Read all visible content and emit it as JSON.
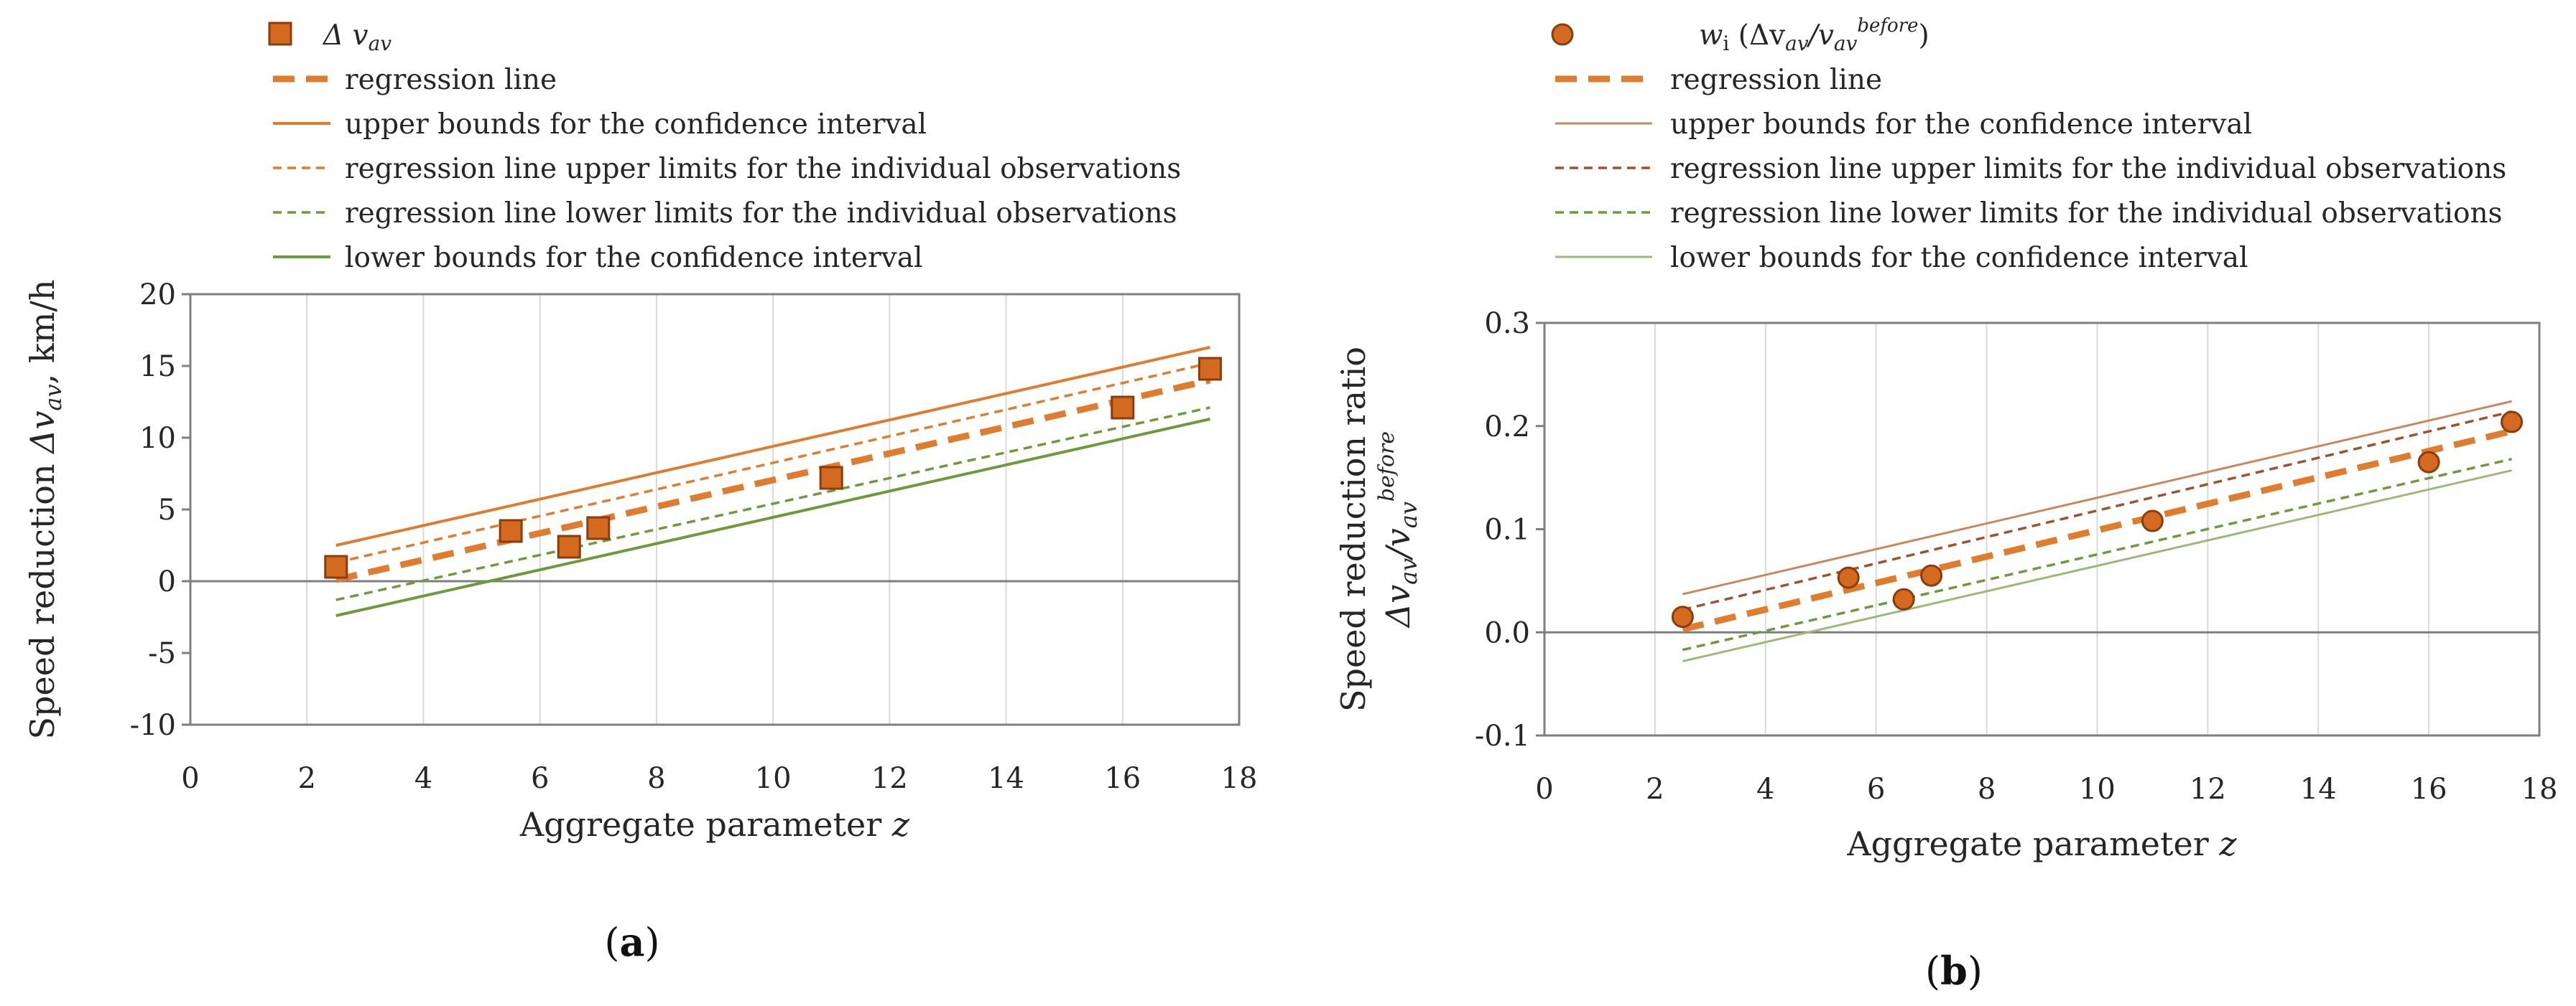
{
  "chart_data": [
    {
      "type": "scatter",
      "panel_label": "(a)",
      "title": "",
      "xlabel": "Aggregate parameter",
      "xlabel_var": "z",
      "ylabel_main": "Speed reduction",
      "ylabel_sym": "Δv",
      "ylabel_sub": "av",
      "ylabel_unit": ", km/h",
      "xlim": [
        0,
        18
      ],
      "ylim": [
        -10,
        20
      ],
      "xticks": [
        0,
        2,
        4,
        6,
        8,
        10,
        12,
        14,
        16,
        18
      ],
      "yticks": [
        -10,
        -5,
        0,
        5,
        10,
        15,
        20
      ],
      "ytick_labels": [
        "-10",
        "-5",
        "0",
        "5",
        "10",
        "15",
        "20"
      ],
      "legend": [
        {
          "key": "obs",
          "label_main": "Δ v",
          "label_sub": "av",
          "label_after": ""
        },
        {
          "key": "reg",
          "label_main": "regression line"
        },
        {
          "key": "ub",
          "label_main": "upper bounds for the confidence interval"
        },
        {
          "key": "pu",
          "label_main": "regression line upper limits for the individual observations"
        },
        {
          "key": "pl",
          "label_main": "regression line lower limits for the individual observations"
        },
        {
          "key": "lb",
          "label_main": "lower bounds for the confidence interval"
        }
      ],
      "series": [
        {
          "key": "obs",
          "kind": "points",
          "marker": "square",
          "color": "#D46A1F",
          "x": [
            2.5,
            5.5,
            6.5,
            7.0,
            11.0,
            16.0,
            17.5
          ],
          "y": [
            1.0,
            3.5,
            2.4,
            3.7,
            7.2,
            12.1,
            14.8
          ]
        },
        {
          "key": "reg",
          "kind": "line",
          "style": "bold-dash",
          "color": "#E07C2E",
          "x": [
            2.5,
            17.5
          ],
          "y": [
            0.1,
            14.0
          ]
        },
        {
          "key": "ub",
          "kind": "line",
          "style": "solid",
          "color": "#E07C2E",
          "x": [
            2.5,
            17.5
          ],
          "y": [
            2.5,
            16.3
          ]
        },
        {
          "key": "pu",
          "kind": "line",
          "style": "dash",
          "color": "#E07C2E",
          "x": [
            2.5,
            17.5
          ],
          "y": [
            1.3,
            15.2
          ]
        },
        {
          "key": "pl",
          "kind": "line",
          "style": "dash",
          "color": "#6E9A3C",
          "x": [
            2.5,
            17.5
          ],
          "y": [
            -1.3,
            12.1
          ]
        },
        {
          "key": "lb",
          "kind": "line",
          "style": "solid",
          "color": "#6E9A3C",
          "x": [
            2.5,
            17.5
          ],
          "y": [
            -2.4,
            11.3
          ]
        }
      ]
    },
    {
      "type": "scatter",
      "panel_label": "(b)",
      "title": "",
      "xlabel": "Aggregate parameter",
      "xlabel_var": "z",
      "ylabel_line1": "Speed reduction ratio",
      "ylabel_line2_a": "Δv",
      "ylabel_line2_sub1": "av",
      "ylabel_line2_b": "/v",
      "ylabel_line2_sub2": "av",
      "ylabel_line2_sup": "before",
      "xlim": [
        0,
        18
      ],
      "ylim": [
        -0.1,
        0.3
      ],
      "xticks": [
        0,
        2,
        4,
        6,
        8,
        10,
        12,
        14,
        16,
        18
      ],
      "yticks": [
        -0.1,
        0.0,
        0.1,
        0.2,
        0.3
      ],
      "ytick_labels": [
        "-0.1",
        "0.0",
        "0.1",
        "0.2",
        "0.3"
      ],
      "legend": [
        {
          "key": "obs",
          "label_main": "w",
          "label_sub": "i",
          "label_after": " (Δv",
          "label_sub2": "av",
          "label_mid": "/v",
          "label_sub3": "av",
          "label_sup": "before",
          "label_end": ")"
        },
        {
          "key": "reg",
          "label_main": "regression line"
        },
        {
          "key": "ub",
          "label_main": "upper bounds for the confidence interval"
        },
        {
          "key": "pu",
          "label_main": "regression line upper limits for the individual observations"
        },
        {
          "key": "pl",
          "label_main": "regression line lower limits for the individual observations"
        },
        {
          "key": "lb",
          "label_main": "lower bounds for the confidence interval"
        }
      ],
      "series": [
        {
          "key": "obs",
          "kind": "points",
          "marker": "circle",
          "color": "#D46A1F",
          "x": [
            2.5,
            5.5,
            6.5,
            7.0,
            11.0,
            16.0,
            17.5
          ],
          "y": [
            0.015,
            0.053,
            0.032,
            0.055,
            0.108,
            0.165,
            0.204
          ]
        },
        {
          "key": "reg",
          "kind": "line",
          "style": "bold-dash",
          "color": "#E07C2E",
          "x": [
            2.5,
            17.5
          ],
          "y": [
            0.003,
            0.195
          ]
        },
        {
          "key": "ub",
          "kind": "line",
          "style": "solid-thin",
          "color": "#C78860",
          "x": [
            2.5,
            17.5
          ],
          "y": [
            0.037,
            0.224
          ]
        },
        {
          "key": "pu",
          "kind": "line",
          "style": "dash",
          "color": "#A0522D",
          "x": [
            2.5,
            17.5
          ],
          "y": [
            0.022,
            0.214
          ]
        },
        {
          "key": "pl",
          "kind": "line",
          "style": "dash",
          "color": "#6E9A3C",
          "x": [
            2.5,
            17.5
          ],
          "y": [
            -0.017,
            0.168
          ]
        },
        {
          "key": "lb",
          "kind": "line",
          "style": "solid-thin",
          "color": "#9DB87A",
          "x": [
            2.5,
            17.5
          ],
          "y": [
            -0.028,
            0.157
          ]
        }
      ]
    }
  ]
}
